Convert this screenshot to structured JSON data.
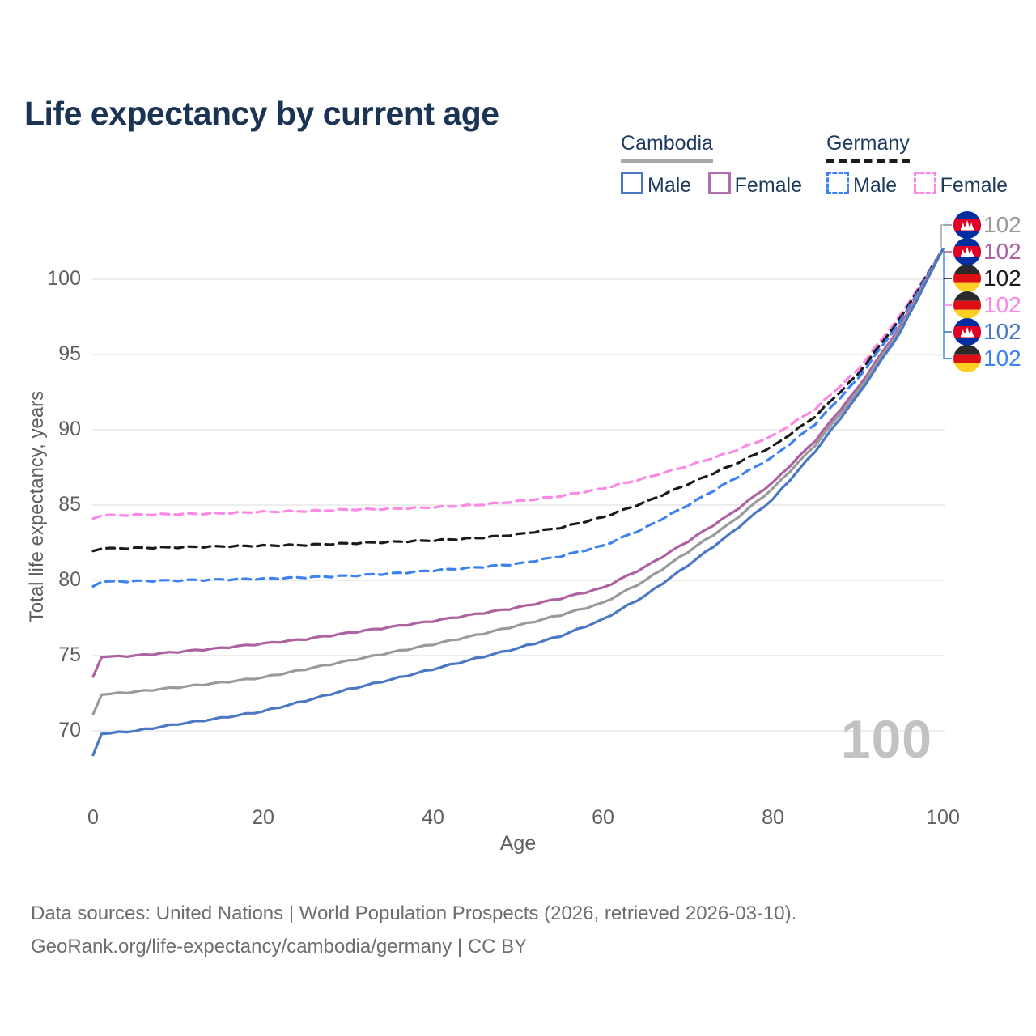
{
  "title": "Life expectancy by current age",
  "legend": {
    "groups": [
      {
        "label": "Cambodia",
        "line_style": "solid",
        "rule_color": "#a8a8a8",
        "items": [
          {
            "label": "Male",
            "color": "#4b78c3",
            "dash": false
          },
          {
            "label": "Female",
            "color": "#b26fae",
            "dash": false
          }
        ]
      },
      {
        "label": "Germany",
        "line_style": "dashed",
        "rule_color": "#1b1b1b",
        "items": [
          {
            "label": "Male",
            "color": "#3d82f2",
            "dash": true
          },
          {
            "label": "Female",
            "color": "#fd87e4",
            "dash": true
          }
        ]
      }
    ]
  },
  "chart_data": {
    "type": "line",
    "title": "Life expectancy by current age",
    "xlabel": "Age",
    "ylabel": "Total life expectancy, years",
    "xticks": [
      0,
      20,
      40,
      60,
      80,
      100
    ],
    "yticks": [
      70,
      75,
      80,
      85,
      90,
      95,
      100
    ],
    "xlim": [
      0,
      100
    ],
    "ylim": [
      68,
      103
    ],
    "grid": "horizontal",
    "watermark": "100",
    "ages": [
      0,
      1,
      5,
      10,
      15,
      20,
      25,
      30,
      35,
      40,
      45,
      50,
      55,
      60,
      65,
      70,
      75,
      80,
      85,
      90,
      95,
      100
    ],
    "series": [
      {
        "name": "Germany Female",
        "flag": "de",
        "color": "#fd87e4",
        "dashed": true,
        "end_label": "102",
        "label_order": 3,
        "values": [
          84.1,
          84.3,
          84.35,
          84.4,
          84.45,
          84.55,
          84.6,
          84.7,
          84.75,
          84.85,
          85.0,
          85.25,
          85.6,
          86.1,
          86.8,
          87.6,
          88.5,
          89.6,
          91.4,
          94.0,
          97.6,
          102
        ]
      },
      {
        "name": "Germany Both sexes",
        "flag": "de",
        "color": "#1b1b1b",
        "dashed": true,
        "end_label": "102",
        "label_order": 2,
        "values": [
          81.95,
          82.1,
          82.15,
          82.2,
          82.25,
          82.3,
          82.35,
          82.45,
          82.55,
          82.65,
          82.8,
          83.05,
          83.5,
          84.2,
          85.2,
          86.4,
          87.6,
          88.9,
          90.9,
          93.7,
          97.4,
          102
        ]
      },
      {
        "name": "Germany Male",
        "flag": "de",
        "color": "#3d82f2",
        "dashed": true,
        "end_label": "102",
        "label_order": 5,
        "values": [
          79.6,
          79.9,
          79.95,
          80.0,
          80.05,
          80.1,
          80.2,
          80.3,
          80.45,
          80.65,
          80.85,
          81.1,
          81.6,
          82.3,
          83.5,
          85.0,
          86.6,
          88.2,
          90.4,
          93.4,
          97.2,
          102
        ]
      },
      {
        "name": "Cambodia Female",
        "flag": "kh",
        "color": "#ad62a2",
        "dashed": false,
        "end_label": "102",
        "label_order": 1,
        "values": [
          73.6,
          74.9,
          75.0,
          75.25,
          75.5,
          75.8,
          76.1,
          76.5,
          76.9,
          77.3,
          77.75,
          78.2,
          78.8,
          79.5,
          80.9,
          82.6,
          84.4,
          86.5,
          89.3,
          92.8,
          96.9,
          102
        ]
      },
      {
        "name": "Cambodia Both sexes",
        "flag": "kh",
        "color": "#9a9a9a",
        "dashed": false,
        "end_label": "102",
        "label_order": 0,
        "values": [
          71.1,
          72.4,
          72.6,
          72.9,
          73.2,
          73.55,
          74.1,
          74.65,
          75.2,
          75.75,
          76.35,
          77.0,
          77.7,
          78.5,
          80.0,
          81.9,
          83.8,
          86.1,
          89.0,
          92.55,
          96.7,
          102
        ]
      },
      {
        "name": "Cambodia Male",
        "flag": "kh",
        "color": "#4b78c3",
        "dashed": false,
        "end_label": "102",
        "label_order": 4,
        "values": [
          68.4,
          69.8,
          70.0,
          70.45,
          70.85,
          71.3,
          72.0,
          72.75,
          73.4,
          74.1,
          74.8,
          75.5,
          76.3,
          77.4,
          79.0,
          81.0,
          83.1,
          85.4,
          88.6,
          92.3,
          96.5,
          102
        ]
      }
    ]
  },
  "footer": {
    "line1": "Data sources: United Nations | World Population Prospects (2026, retrieved 2026-03-10).",
    "line2": "GeoRank.org/life-expectancy/cambodia/germany | CC BY"
  }
}
